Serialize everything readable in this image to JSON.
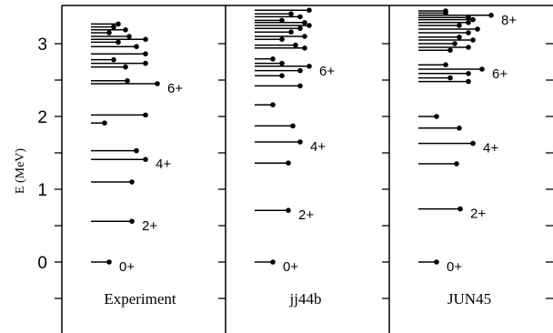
{
  "chart_data": {
    "type": "scatter",
    "ylabel": "E (MeV)",
    "ylim": [
      -0.85,
      3.5
    ],
    "yticks": [
      0,
      1,
      2,
      3
    ],
    "yticklabels": [
      "0",
      "1",
      "2",
      "3"
    ],
    "panels": [
      {
        "name": "Experiment",
        "levels": [
          {
            "e": 0.0,
            "len": 0.2,
            "spin": "0+"
          },
          {
            "e": 0.56,
            "len": 0.45,
            "spin": "2+"
          },
          {
            "e": 1.1,
            "len": 0.45
          },
          {
            "e": 1.41,
            "len": 0.6,
            "spin": "4+"
          },
          {
            "e": 1.53,
            "len": 0.5
          },
          {
            "e": 1.91,
            "len": 0.15
          },
          {
            "e": 2.02,
            "len": 0.6
          },
          {
            "e": 2.45,
            "len": 0.73,
            "spin": "6+"
          },
          {
            "e": 2.49,
            "len": 0.4
          },
          {
            "e": 2.68,
            "len": 0.38
          },
          {
            "e": 2.73,
            "len": 0.6
          },
          {
            "e": 2.78,
            "len": 0.25
          },
          {
            "e": 2.86,
            "len": 0.6
          },
          {
            "e": 2.96,
            "len": 0.5
          },
          {
            "e": 3.02,
            "len": 0.3
          },
          {
            "e": 3.06,
            "len": 0.6
          },
          {
            "e": 3.1,
            "len": 0.42
          },
          {
            "e": 3.15,
            "len": 0.2
          },
          {
            "e": 3.19,
            "len": 0.38
          },
          {
            "e": 3.23,
            "len": 0.25
          },
          {
            "e": 3.27,
            "len": 0.3
          }
        ]
      },
      {
        "name": "jj44b",
        "levels": [
          {
            "e": 0.0,
            "len": 0.2,
            "spin": "0+"
          },
          {
            "e": 0.71,
            "len": 0.37,
            "spin": "2+"
          },
          {
            "e": 1.36,
            "len": 0.37
          },
          {
            "e": 1.65,
            "len": 0.5,
            "spin": "4+"
          },
          {
            "e": 1.87,
            "len": 0.42
          },
          {
            "e": 2.16,
            "len": 0.2
          },
          {
            "e": 2.42,
            "len": 0.5
          },
          {
            "e": 2.56,
            "len": 0.3
          },
          {
            "e": 2.63,
            "len": 0.5
          },
          {
            "e": 2.69,
            "len": 0.6,
            "spin": "6+"
          },
          {
            "e": 2.73,
            "len": 0.3
          },
          {
            "e": 2.79,
            "len": 0.2
          },
          {
            "e": 2.94,
            "len": 0.55
          },
          {
            "e": 2.98,
            "len": 0.45
          },
          {
            "e": 3.06,
            "len": 0.3
          },
          {
            "e": 3.1,
            "len": 0.55
          },
          {
            "e": 3.16,
            "len": 0.4
          },
          {
            "e": 3.21,
            "len": 0.5
          },
          {
            "e": 3.25,
            "len": 0.6
          },
          {
            "e": 3.29,
            "len": 0.55
          },
          {
            "e": 3.32,
            "len": 0.3
          },
          {
            "e": 3.37,
            "len": 0.5
          },
          {
            "e": 3.41,
            "len": 0.4
          },
          {
            "e": 3.46,
            "len": 0.6
          }
        ]
      },
      {
        "name": "JUN45",
        "levels": [
          {
            "e": 0.0,
            "len": 0.2,
            "spin": "0+"
          },
          {
            "e": 0.73,
            "len": 0.46,
            "spin": "2+"
          },
          {
            "e": 1.35,
            "len": 0.42
          },
          {
            "e": 1.63,
            "len": 0.6,
            "spin": "4+"
          },
          {
            "e": 1.84,
            "len": 0.45
          },
          {
            "e": 2.0,
            "len": 0.2
          },
          {
            "e": 2.48,
            "len": 0.55
          },
          {
            "e": 2.53,
            "len": 0.35
          },
          {
            "e": 2.59,
            "len": 0.55
          },
          {
            "e": 2.65,
            "len": 0.7,
            "spin": "6+"
          },
          {
            "e": 2.71,
            "len": 0.3
          },
          {
            "e": 2.91,
            "len": 0.35
          },
          {
            "e": 2.95,
            "len": 0.55
          },
          {
            "e": 3.0,
            "len": 0.4
          },
          {
            "e": 3.05,
            "len": 0.6
          },
          {
            "e": 3.09,
            "len": 0.45
          },
          {
            "e": 3.15,
            "len": 0.55
          },
          {
            "e": 3.2,
            "len": 0.65
          },
          {
            "e": 3.25,
            "len": 0.45
          },
          {
            "e": 3.29,
            "len": 0.55
          },
          {
            "e": 3.33,
            "len": 0.6
          },
          {
            "e": 3.36,
            "len": 0.55
          },
          {
            "e": 3.39,
            "len": 0.8,
            "spin": "8+"
          },
          {
            "e": 3.42,
            "len": 0.3
          },
          {
            "e": 3.45,
            "len": 0.3
          }
        ]
      }
    ]
  }
}
